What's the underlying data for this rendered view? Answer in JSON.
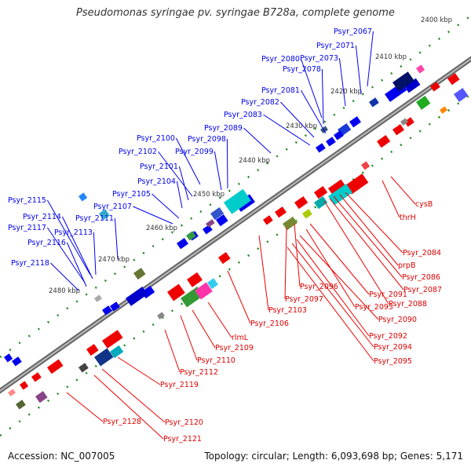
{
  "title": "Pseudomonas syringae pv. syringae B728a, complete genome",
  "footer": {
    "accession": "Accession: NC_007005",
    "summary": "Topology: circular; Length: 6,093,698 bp; Genes: 5,171"
  },
  "kbp_ticks": [
    "2400 kbp",
    "2410 kbp",
    "2420 kbp",
    "2430 kbp",
    "2440 kbp",
    "2450 kbp",
    "2460 kbp",
    "2470 kbp",
    "2480 kbp"
  ],
  "blue_labels": [
    "Psyr_2067",
    "Psyr_2071",
    "Psyr_2073",
    "Psyr_2080",
    "Psyr_2078",
    "Psyr_2081",
    "Psyr_2082",
    "Psyr_2083",
    "Psyr_2089",
    "Psyr_2100",
    "Psyr_2098",
    "Psyr_2102",
    "Psyr_2099",
    "Psyr_2101",
    "Psyr_2104",
    "Psyr_2105",
    "Psyr_2107",
    "Psyr_2115",
    "Psyr_2111",
    "Psyr_2114",
    "Psyr_2117",
    "Psyr_2113",
    "Psyr_2116",
    "Psyr_2118"
  ],
  "red_labels": [
    "cysB",
    "thrH",
    "Psyr_2084",
    "prpB",
    "Psyr_2086",
    "Psyr_2087",
    "Psyr_2088",
    "Psyr_2096",
    "Psyr_2091",
    "Psyr_2097",
    "Psyr_2093",
    "Psyr_2103",
    "Psyr_2090",
    "Psyr_2106",
    "Psyr_2092",
    "rlmL",
    "Psyr_2094",
    "Psyr_2109",
    "Psyr_2095",
    "Psyr_2110",
    "Psyr_2112",
    "Psyr_2119",
    "Psyr_2128",
    "Psyr_2120",
    "Psyr_2121"
  ],
  "colors": {
    "forward": "#0000ee",
    "reverse": "#ee0000",
    "backbone": "#888888",
    "tick": "#228822"
  }
}
